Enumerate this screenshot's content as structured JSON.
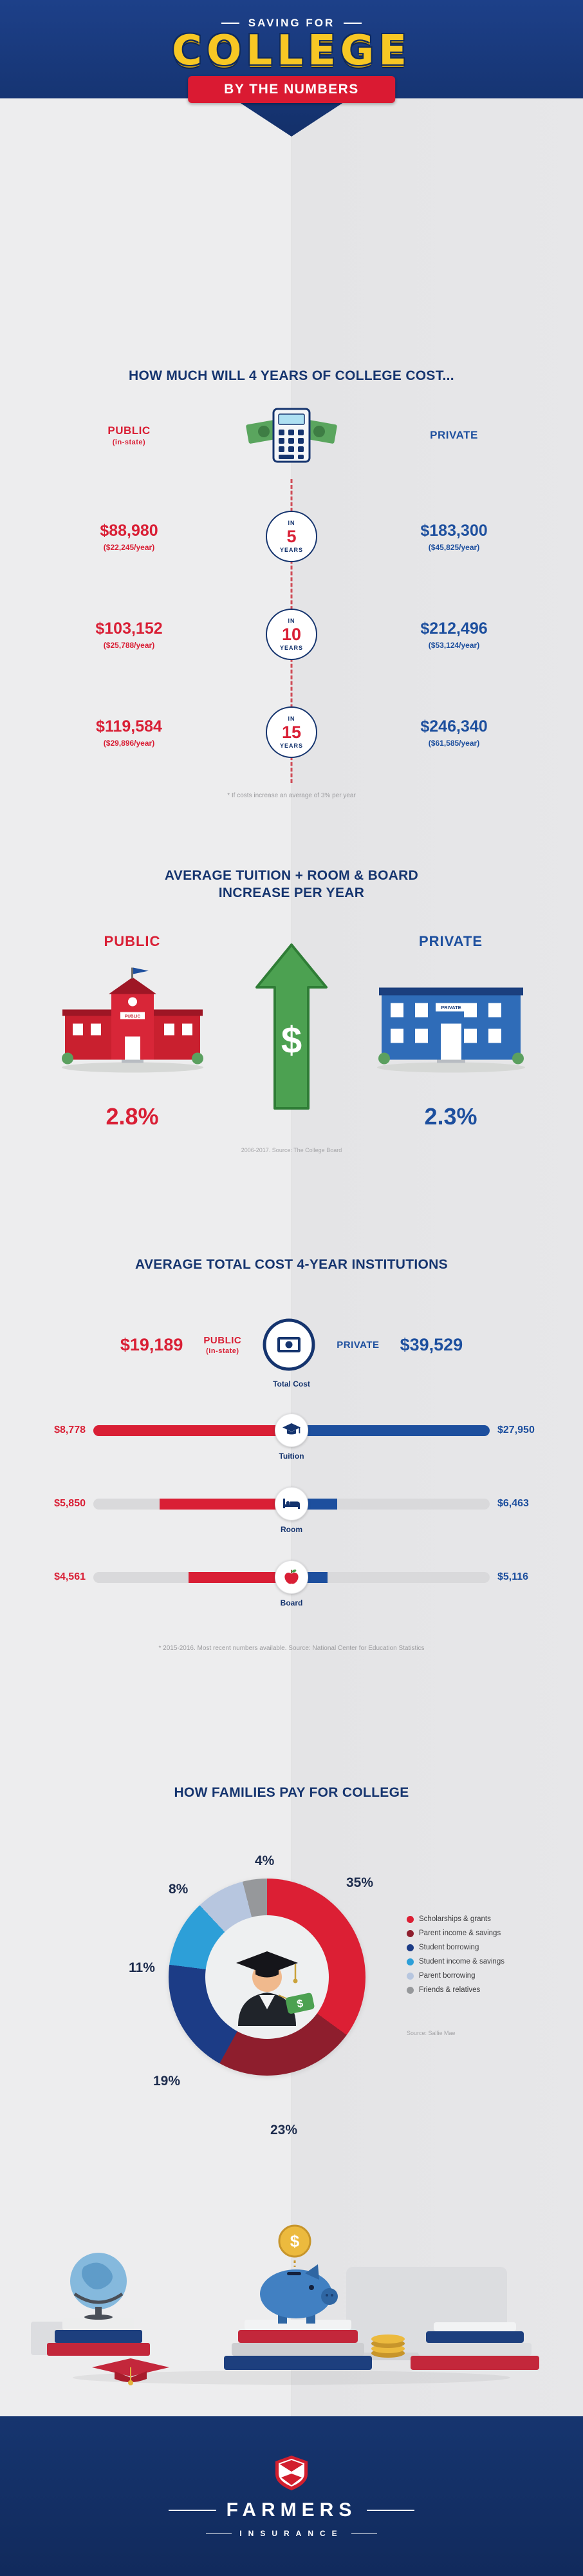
{
  "header": {
    "eyebrow": "SAVING FOR",
    "title": "COLLEGE",
    "banner": "BY THE NUMBERS"
  },
  "misc": {
    "dollar": "$"
  },
  "section_cost": {
    "title": "HOW MUCH WILL 4 YEARS OF COLLEGE COST...",
    "public_label": "PUBLIC",
    "public_sub": "(in-state)",
    "private_label": "PRIVATE",
    "circle_in": "IN",
    "circle_years": "YEARS",
    "rows": [
      {
        "years": "5",
        "public_total": "$88,980",
        "public_per_year": "($22,245/year)",
        "private_total": "$183,300",
        "private_per_year": "($45,825/year)"
      },
      {
        "years": "10",
        "public_total": "$103,152",
        "public_per_year": "($25,788/year)",
        "private_total": "$212,496",
        "private_per_year": "($53,124/year)"
      },
      {
        "years": "15",
        "public_total": "$119,584",
        "public_per_year": "($29,896/year)",
        "private_total": "$246,340",
        "private_per_year": "($61,585/year)"
      }
    ],
    "footnote": "* If costs increase an average of 3% per year"
  },
  "section_increase": {
    "title": "AVERAGE TUITION + ROOM & BOARD INCREASE PER YEAR",
    "public_label": "PUBLIC",
    "private_label": "PRIVATE",
    "public_sign": "PUBLIC",
    "private_sign": "PRIVATE",
    "public_value": "2.8%",
    "private_value": "2.3%",
    "source": "2006-2017. Source: The College Board"
  },
  "section_total": {
    "title": "AVERAGE TOTAL COST 4-YEAR INSTITUTIONS",
    "public_amount": "$19,189",
    "public_label": "PUBLIC",
    "public_sub": "(in-state)",
    "private_label": "PRIVATE",
    "private_amount": "$39,529",
    "caption": "Total Cost",
    "bars": [
      {
        "label": "Tuition",
        "public": "$8,778",
        "private": "$27,950"
      },
      {
        "label": "Room",
        "public": "$5,850",
        "private": "$6,463"
      },
      {
        "label": "Board",
        "public": "$4,561",
        "private": "$5,116"
      }
    ],
    "footnote": "* 2015-2016. Most recent numbers available. Source: National Center for Education Statistics"
  },
  "section_pay": {
    "title": "HOW FAMILIES PAY FOR COLLEGE",
    "percent_labels": [
      "35%",
      "23%",
      "19%",
      "11%",
      "8%",
      "4%"
    ],
    "legend": [
      "Scholarships & grants",
      "Parent income & savings",
      "Student borrowing",
      "Student income & savings",
      "Parent borrowing",
      "Friends & relatives"
    ],
    "source": "Source: Sallie Mae"
  },
  "footer": {
    "brand": "FARMERS",
    "brand_sub": "INSURANCE"
  },
  "colors": {
    "navy": "#16356f",
    "red": "#d91f35",
    "blue": "#1d4f9e",
    "gold": "#f7c724",
    "green": "#4ca151"
  },
  "chart_data": [
    {
      "id": "pay-donut",
      "type": "pie",
      "title": "How Families Pay for College",
      "labels": [
        "Scholarships & grants",
        "Parent income & savings",
        "Student borrowing",
        "Student income & savings",
        "Parent borrowing",
        "Friends & relatives"
      ],
      "values": [
        35,
        23,
        19,
        11,
        8,
        4
      ],
      "unit": "%",
      "colors": [
        "#dc1f34",
        "#8e1e2d",
        "#1c3c86",
        "#2d9fd8",
        "#b7c6df",
        "#96989b"
      ],
      "legend_position": "right",
      "source": "Source: Sallie Mae"
    },
    {
      "id": "cost-bars",
      "type": "bar",
      "orientation": "horizontal-mirrored",
      "title": "Average Total Cost 4-Year Institutions",
      "categories": [
        "Tuition",
        "Room",
        "Board"
      ],
      "series": [
        {
          "name": "Public (in-state)",
          "color": "#d91f35",
          "values": [
            8778,
            5850,
            4561
          ]
        },
        {
          "name": "Private",
          "color": "#1d4f9e",
          "values": [
            27950,
            6463,
            5116
          ]
        }
      ],
      "totals": {
        "public": 19189,
        "private": 39529
      },
      "source": "* 2015-2016. Most recent numbers available. Source: National Center for Education Statistics"
    },
    {
      "id": "four-year-projection",
      "type": "table",
      "title": "How Much Will 4 Years of College Cost",
      "categories": [
        "In 5 years",
        "In 10 years",
        "In 15 years"
      ],
      "series": [
        {
          "name": "Public (in-state)",
          "values": [
            88980,
            103152,
            119584
          ],
          "per_year": [
            22245,
            25788,
            29896
          ]
        },
        {
          "name": "Private",
          "values": [
            183300,
            212496,
            246340
          ],
          "per_year": [
            45825,
            53124,
            61585
          ]
        }
      ],
      "note": "* If costs increase an average of 3% per year"
    },
    {
      "id": "annual-increase",
      "type": "bar",
      "title": "Average Tuition + Room & Board Increase Per Year",
      "categories": [
        "Public",
        "Private"
      ],
      "values": [
        2.8,
        2.3
      ],
      "unit": "%",
      "source": "2006-2017. Source: The College Board"
    }
  ]
}
